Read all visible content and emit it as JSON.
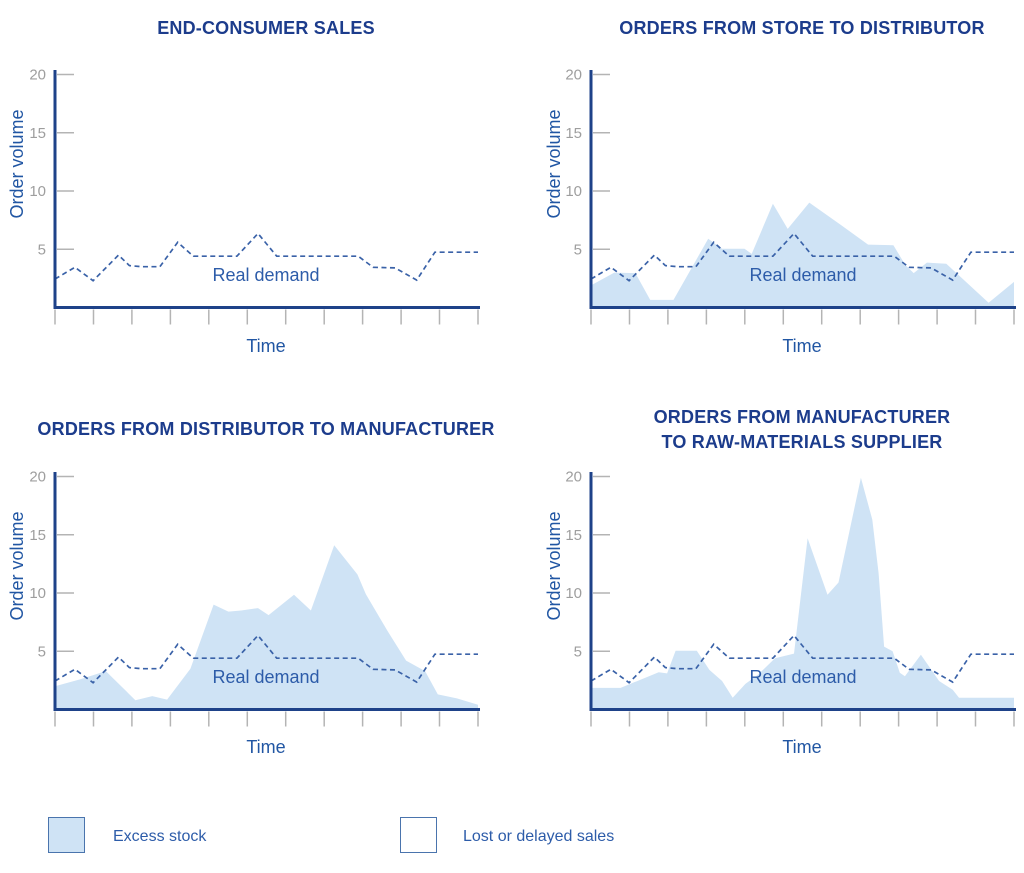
{
  "colors": {
    "title": "#1c3c8c",
    "axis": "#1e4289",
    "axis_label": "#2156a3",
    "demand_line": "#3a62a8",
    "annotation": "#2d5ca9",
    "area_fill": "#cfe3f5",
    "tick": "#b4b4b4",
    "tick_label": "#9e9e9e",
    "legend_text": "#2d5ca9",
    "legend_border": "#4a74ad",
    "background": "#ffffff"
  },
  "legend": {
    "items": [
      {
        "label": "Excess stock",
        "swatch": "filled"
      },
      {
        "label": "Lost or delayed sales",
        "swatch": "empty"
      }
    ]
  },
  "chart_data": [
    {
      "type": "line",
      "title": "END-CONSUMER SALES",
      "title_lines": [
        "END-CONSUMER SALES"
      ],
      "xlabel": "Time",
      "ylabel": "Order volume",
      "annotation": "Real demand",
      "ylim": [
        0,
        20
      ],
      "yticks": [
        5,
        10,
        15,
        20
      ],
      "x_tick_count": 12,
      "x_unit": "percent-of-timeline",
      "grid": false,
      "series": [
        {
          "name": "Real demand",
          "style": "dashed",
          "points": [
            [
              0,
              2.45
            ],
            [
              4.7,
              3.45
            ],
            [
              9,
              2.3
            ],
            [
              15,
              4.5
            ],
            [
              17.6,
              3.6
            ],
            [
              20.5,
              3.5
            ],
            [
              24.8,
              3.5
            ],
            [
              29,
              5.6
            ],
            [
              32.7,
              4.4
            ],
            [
              43,
              4.4
            ],
            [
              48,
              6.35
            ],
            [
              52.4,
              4.4
            ],
            [
              71.7,
              4.4
            ],
            [
              75.2,
              3.45
            ],
            [
              80.4,
              3.4
            ],
            [
              85.5,
              2.35
            ],
            [
              89.8,
              4.75
            ],
            [
              100,
              4.75
            ]
          ]
        }
      ]
    },
    {
      "type": "area",
      "title": "ORDERS FROM STORE TO DISTRIBUTOR",
      "title_lines": [
        "ORDERS FROM STORE TO DISTRIBUTOR"
      ],
      "xlabel": "Time",
      "ylabel": "Order volume",
      "annotation": "Real demand",
      "ylim": [
        0,
        20
      ],
      "yticks": [
        5,
        10,
        15,
        20
      ],
      "x_tick_count": 12,
      "x_unit": "percent-of-timeline",
      "grid": false,
      "series": [
        {
          "name": "Orders (excess stock shaded)",
          "style": "area",
          "points": [
            [
              0,
              1.9
            ],
            [
              5.5,
              3.0
            ],
            [
              10.5,
              2.95
            ],
            [
              14,
              0.65
            ],
            [
              19.5,
              0.65
            ],
            [
              27.7,
              5.9
            ],
            [
              31,
              5.05
            ],
            [
              36.3,
              5.05
            ],
            [
              38,
              4.6
            ],
            [
              43,
              8.9
            ],
            [
              46.5,
              6.75
            ],
            [
              51.6,
              9.0
            ],
            [
              59,
              7.1
            ],
            [
              65.5,
              5.4
            ],
            [
              71.5,
              5.35
            ],
            [
              74.3,
              3.65
            ],
            [
              76.3,
              2.95
            ],
            [
              79.4,
              3.85
            ],
            [
              84,
              3.75
            ],
            [
              94,
              0.4
            ],
            [
              100,
              2.2
            ]
          ]
        },
        {
          "name": "Real demand",
          "style": "dashed",
          "points": [
            [
              0,
              2.45
            ],
            [
              4.7,
              3.45
            ],
            [
              9,
              2.3
            ],
            [
              15,
              4.5
            ],
            [
              17.6,
              3.6
            ],
            [
              20.5,
              3.5
            ],
            [
              24.8,
              3.5
            ],
            [
              29,
              5.6
            ],
            [
              32.7,
              4.4
            ],
            [
              43,
              4.4
            ],
            [
              48,
              6.35
            ],
            [
              52.4,
              4.4
            ],
            [
              71.7,
              4.4
            ],
            [
              75.2,
              3.45
            ],
            [
              80.4,
              3.4
            ],
            [
              85.5,
              2.35
            ],
            [
              89.8,
              4.75
            ],
            [
              100,
              4.75
            ]
          ]
        }
      ]
    },
    {
      "type": "area",
      "title": "ORDERS FROM DISTRIBUTOR TO MANUFACTURER",
      "title_lines": [
        "ORDERS FROM DISTRIBUTOR TO MANUFACTURER"
      ],
      "xlabel": "Time",
      "ylabel": "Order volume",
      "annotation": "Real demand",
      "ylim": [
        0,
        20
      ],
      "yticks": [
        5,
        10,
        15,
        20
      ],
      "x_tick_count": 12,
      "x_unit": "percent-of-timeline",
      "grid": false,
      "series": [
        {
          "name": "Orders (excess stock shaded)",
          "style": "area",
          "points": [
            [
              0,
              2.0
            ],
            [
              6,
              2.6
            ],
            [
              12,
              3.3
            ],
            [
              19,
              0.8
            ],
            [
              23,
              1.15
            ],
            [
              26.5,
              0.85
            ],
            [
              32,
              3.5
            ],
            [
              37.5,
              9.0
            ],
            [
              41,
              8.4
            ],
            [
              44,
              8.5
            ],
            [
              48,
              8.7
            ],
            [
              50.5,
              8.1
            ],
            [
              56.5,
              9.85
            ],
            [
              60.5,
              8.5
            ],
            [
              66,
              14.1
            ],
            [
              71.5,
              11.6
            ],
            [
              73.5,
              9.9
            ],
            [
              78.5,
              6.8
            ],
            [
              83,
              4.2
            ],
            [
              87.5,
              3.3
            ],
            [
              90.5,
              1.3
            ],
            [
              95,
              0.95
            ],
            [
              100,
              0.4
            ]
          ]
        },
        {
          "name": "Real demand",
          "style": "dashed",
          "points": [
            [
              0,
              2.45
            ],
            [
              4.7,
              3.45
            ],
            [
              9,
              2.3
            ],
            [
              15,
              4.5
            ],
            [
              17.6,
              3.6
            ],
            [
              20.5,
              3.5
            ],
            [
              24.8,
              3.5
            ],
            [
              29,
              5.6
            ],
            [
              32.7,
              4.4
            ],
            [
              43,
              4.4
            ],
            [
              48,
              6.35
            ],
            [
              52.4,
              4.4
            ],
            [
              71.7,
              4.4
            ],
            [
              75.2,
              3.45
            ],
            [
              80.4,
              3.4
            ],
            [
              85.5,
              2.35
            ],
            [
              89.8,
              4.75
            ],
            [
              100,
              4.75
            ]
          ]
        }
      ]
    },
    {
      "type": "area",
      "title": "ORDERS FROM MANUFACTURER TO RAW-MATERIALS SUPPLIER",
      "title_lines": [
        "ORDERS FROM MANUFACTURER",
        "TO RAW-MATERIALS SUPPLIER"
      ],
      "xlabel": "Time",
      "ylabel": "Order volume",
      "annotation": "Real demand",
      "ylim": [
        0,
        20
      ],
      "yticks": [
        5,
        10,
        15,
        20
      ],
      "x_tick_count": 12,
      "x_unit": "percent-of-timeline",
      "grid": false,
      "series": [
        {
          "name": "Orders (excess stock shaded)",
          "style": "area",
          "points": [
            [
              0,
              1.85
            ],
            [
              7,
              1.85
            ],
            [
              16,
              3.2
            ],
            [
              18,
              3.1
            ],
            [
              20,
              5.05
            ],
            [
              25,
              5.05
            ],
            [
              28,
              3.4
            ],
            [
              31,
              2.45
            ],
            [
              33.5,
              1.0
            ],
            [
              36.5,
              2.2
            ],
            [
              39.5,
              3.0
            ],
            [
              43.5,
              4.4
            ],
            [
              48,
              4.8
            ],
            [
              51.2,
              14.7
            ],
            [
              55.9,
              9.85
            ],
            [
              58.5,
              10.9
            ],
            [
              63.8,
              19.9
            ],
            [
              66.5,
              16.3
            ],
            [
              68,
              11.7
            ],
            [
              69.3,
              5.4
            ],
            [
              71.3,
              5.0
            ],
            [
              73,
              3.15
            ],
            [
              74.2,
              2.85
            ],
            [
              78,
              4.7
            ],
            [
              82.3,
              2.45
            ],
            [
              85.5,
              1.7
            ],
            [
              87,
              1.0
            ],
            [
              100,
              1.0
            ]
          ]
        },
        {
          "name": "Real demand",
          "style": "dashed",
          "points": [
            [
              0,
              2.45
            ],
            [
              4.7,
              3.45
            ],
            [
              9,
              2.3
            ],
            [
              15,
              4.5
            ],
            [
              17.6,
              3.6
            ],
            [
              20.5,
              3.5
            ],
            [
              24.8,
              3.5
            ],
            [
              29,
              5.6
            ],
            [
              32.7,
              4.4
            ],
            [
              43,
              4.4
            ],
            [
              48,
              6.35
            ],
            [
              52.4,
              4.4
            ],
            [
              71.7,
              4.4
            ],
            [
              75.2,
              3.45
            ],
            [
              80.4,
              3.4
            ],
            [
              85.5,
              2.35
            ],
            [
              89.8,
              4.75
            ],
            [
              100,
              4.75
            ]
          ]
        }
      ]
    }
  ]
}
